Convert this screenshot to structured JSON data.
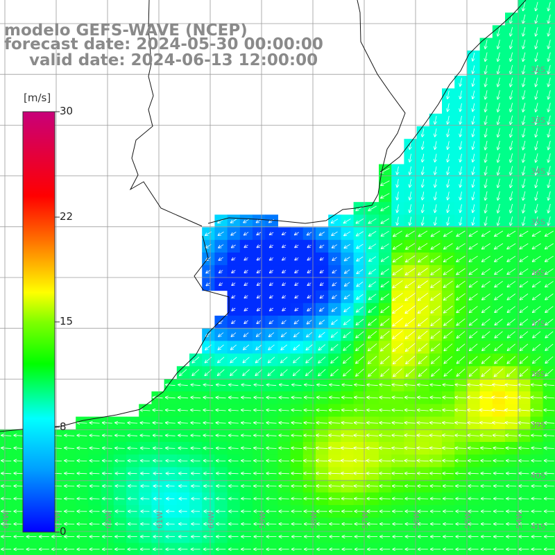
{
  "header": {
    "model": "modelo GEFS-WAVE (NCEP)",
    "forecast": "forecast date: 2024-05-30 00:00:00",
    "valid": "valid date: 2024-06-13 12:00:00"
  },
  "colorbar": {
    "unit": "[m/s]",
    "ticks": [
      "30",
      "22",
      "15",
      "8",
      "0"
    ],
    "stops": [
      "#0000ff",
      "#00b4ff",
      "#00ffff",
      "#00ff00",
      "#ffff00",
      "#ff8c00",
      "#ff0000",
      "#c8007a"
    ]
  },
  "map": {
    "lat_labels": [
      "32S",
      "33S",
      "34S",
      "35S",
      "36S",
      "37S",
      "38S",
      "39S",
      "40S",
      "41S"
    ],
    "lon_labels": [
      "64W",
      "63W",
      "62W",
      "61W",
      "60W",
      "59W",
      "58W",
      "57W",
      "56W",
      "55W",
      "54W",
      "53W"
    ],
    "land_color": "#ffffff",
    "grid_color": "#9a9a9a"
  }
}
